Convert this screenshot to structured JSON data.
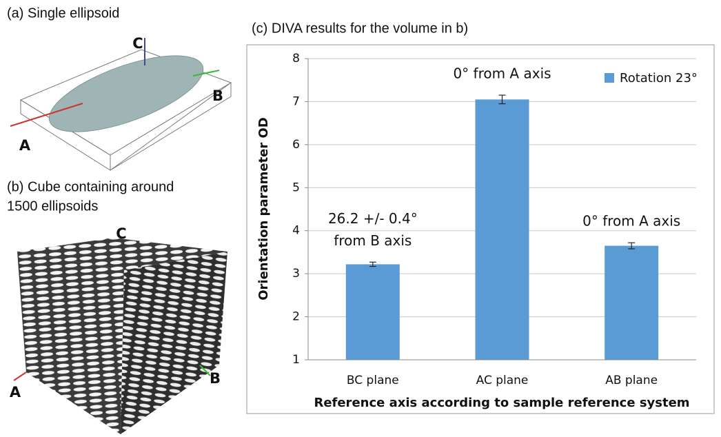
{
  "panels": {
    "a": {
      "title": "(a) Single ellipsoid",
      "axes": [
        "A",
        "B",
        "C"
      ]
    },
    "b": {
      "title_lines": [
        "(b) Cube containing around",
        "1500 ellipsoids"
      ],
      "axes": [
        "A",
        "B",
        "C"
      ]
    }
  },
  "chart_data": {
    "type": "bar",
    "title": "(c) DIVA results for the volume in b)",
    "categories": [
      "BC plane",
      "AC plane",
      "AB plane"
    ],
    "series": [
      {
        "name": "Rotation 23°",
        "color": "#5b9bd5",
        "values": [
          3.22,
          7.05,
          3.65
        ],
        "errors": [
          0.05,
          0.1,
          0.07
        ]
      }
    ],
    "annotations": [
      [
        "26.2 +/- 0.4°",
        "from B axis"
      ],
      [
        "0° from A axis"
      ],
      [
        "0° from A axis"
      ]
    ],
    "ylim": [
      1,
      8
    ],
    "yticks": [
      1,
      2,
      3,
      4,
      5,
      6,
      7,
      8
    ],
    "grid": true,
    "ylabel": "Orientation parameter OD",
    "xlabel": "Reference axis according to sample reference system",
    "legend": "top-right"
  }
}
